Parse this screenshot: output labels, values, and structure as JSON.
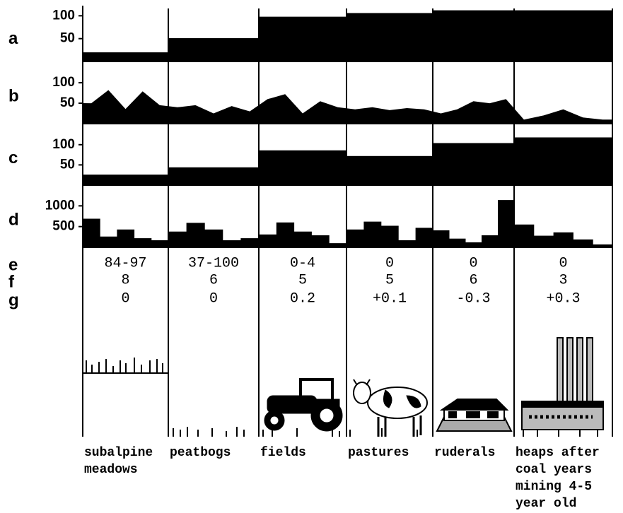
{
  "chart_data": [
    {
      "type": "bar",
      "title": "a",
      "color": "#000000",
      "values": [
        20,
        51,
        98,
        106,
        112,
        112
      ],
      "ylim": [
        0,
        116
      ],
      "yticks": [
        50,
        100
      ]
    },
    {
      "type": "area",
      "title": "b",
      "color": "#000000",
      "values": [
        50,
        82,
        36,
        79,
        45,
        40,
        45,
        25,
        43,
        30,
        60,
        72,
        25,
        55,
        40,
        35,
        40,
        33,
        38,
        35,
        25,
        35,
        55,
        50,
        60,
        10,
        20,
        35,
        15,
        10
      ],
      "ylim": [
        0,
        152
      ],
      "yticks": [
        50,
        100
      ]
    },
    {
      "type": "bar",
      "title": "c",
      "color": "#000000",
      "values": [
        26,
        44,
        86,
        72,
        104,
        118
      ],
      "ylim": [
        0,
        152
      ],
      "yticks": [
        50,
        100
      ]
    },
    {
      "type": "bar",
      "title": "d",
      "color": "#000000",
      "values": [
        690,
        260,
        430,
        220,
        170,
        380,
        590,
        430,
        170,
        220,
        310,
        600,
        380,
        290,
        100,
        430,
        620,
        520,
        170,
        470,
        410,
        210,
        120,
        290,
        1140,
        550,
        280,
        360,
        190,
        70
      ],
      "ylim": [
        0,
        1500
      ],
      "yticks": [
        500,
        1000
      ]
    }
  ],
  "table": {
    "rows": [
      {
        "label": "e",
        "cells": [
          "84-97",
          "37-100",
          "0-4",
          "0",
          "0",
          "0"
        ]
      },
      {
        "label": "f",
        "cells": [
          "8",
          "6",
          "5",
          "5",
          "6",
          "3"
        ]
      },
      {
        "label": "g",
        "cells": [
          "0",
          "0",
          "0.2",
          "+0.1",
          "-0.3",
          "+0.3"
        ]
      }
    ],
    "habitats": [
      [
        "subalpine",
        "meadows"
      ],
      [
        "peatbogs"
      ],
      [
        "fields"
      ],
      [
        "pastures"
      ],
      [
        "ruderals"
      ],
      [
        "heaps after",
        "coal years",
        "mining 4-5",
        "year old"
      ]
    ]
  }
}
